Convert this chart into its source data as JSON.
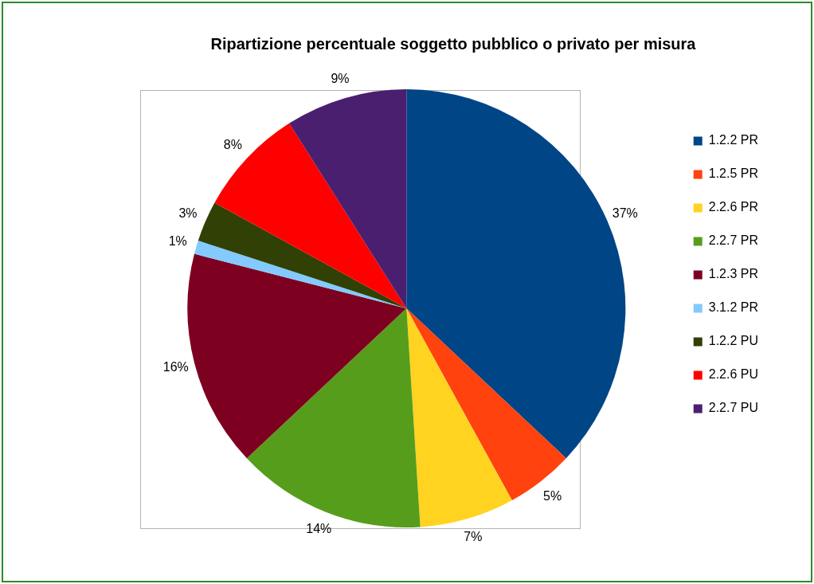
{
  "chart_data": {
    "type": "pie",
    "title": "Ripartizione percentuale soggetto pubblico o privato per misura",
    "categories": [
      "1.2.2 PR",
      "1.2.5 PR",
      "2.2.6 PR",
      "2.2.7 PR",
      "1.2.3 PR",
      "3.1.2 PR",
      "1.2.2 PU",
      "2.2.6 PU",
      "2.2.7 PU"
    ],
    "values": [
      37,
      5,
      7,
      14,
      16,
      1,
      3,
      8,
      9
    ],
    "value_labels": [
      "37%",
      "5%",
      "7%",
      "14%",
      "16%",
      "1%",
      "3%",
      "8%",
      "9%"
    ],
    "colors": [
      "#004586",
      "#ff420e",
      "#ffd320",
      "#579d1c",
      "#7e0021",
      "#83caff",
      "#314004",
      "#ff0000",
      "#4b1f6f"
    ],
    "legend": "right"
  }
}
